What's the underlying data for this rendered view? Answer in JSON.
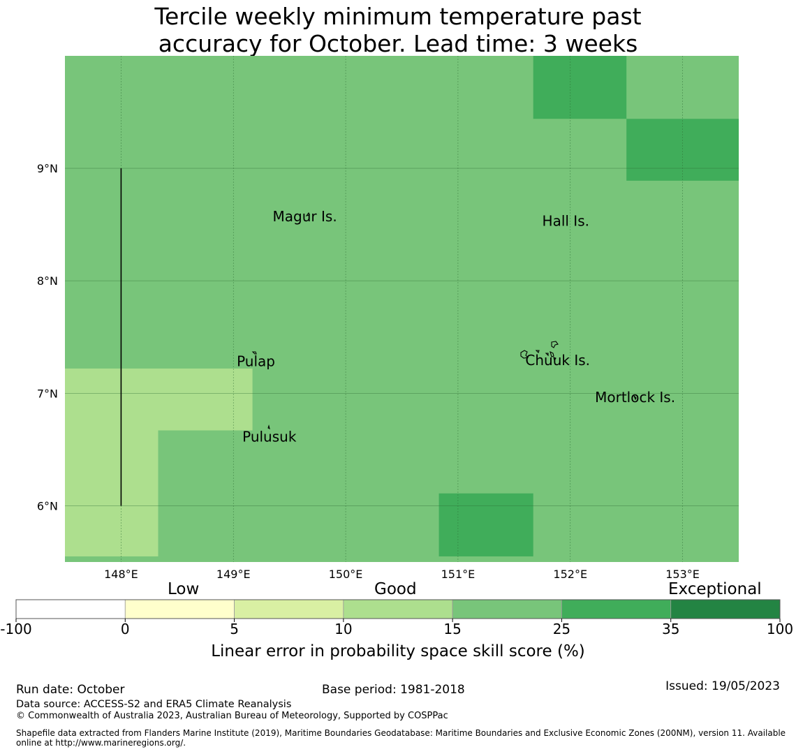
{
  "title_line1": "Tercile weekly minimum temperature past",
  "title_line2": "accuracy for October. Lead time: 3 weeks",
  "map": {
    "lon_range": [
      147.5,
      153.5
    ],
    "lat_range": [
      5.5,
      10.0
    ],
    "lon_ticks": [
      148,
      149,
      150,
      151,
      152,
      153
    ],
    "lon_tick_labels": [
      "148°E",
      "149°E",
      "150°E",
      "151°E",
      "152°E",
      "153°E"
    ],
    "lat_ticks": [
      9,
      8,
      7,
      6
    ],
    "lat_tick_labels": [
      "9°N",
      "8°N",
      "7°N",
      "6°N"
    ],
    "background_color": "#78c57a",
    "grid": true,
    "skill_regions": [
      {
        "lon": [
          147.5,
          149.17
        ],
        "lat": [
          6.67,
          7.22
        ],
        "color": "#addf8e"
      },
      {
        "lon": [
          147.5,
          148.33
        ],
        "lat": [
          5.55,
          6.67
        ],
        "color": "#addf8e"
      },
      {
        "lon": [
          151.67,
          152.5
        ],
        "lat": [
          9.44,
          10.0
        ],
        "color": "#40ad5a"
      },
      {
        "lon": [
          152.5,
          153.5
        ],
        "lat": [
          8.89,
          9.44
        ],
        "color": "#40ad5a"
      },
      {
        "lon": [
          150.83,
          151.67
        ],
        "lat": [
          5.55,
          6.11
        ],
        "color": "#40ad5a"
      }
    ],
    "boundary_line": {
      "lon": 148.0,
      "lat": [
        6.0,
        9.0
      ]
    },
    "place_labels": [
      {
        "name": "Magur Is.",
        "lon": 149.35,
        "lat": 8.53
      },
      {
        "name": "Hall Is.",
        "lon": 151.75,
        "lat": 8.49
      },
      {
        "name": "Pulap",
        "lon": 149.03,
        "lat": 7.24
      },
      {
        "name": "Chuuk Is.",
        "lon": 151.6,
        "lat": 7.25
      },
      {
        "name": "Mortlock Is.",
        "lon": 152.22,
        "lat": 6.92
      },
      {
        "name": "Pulusuk",
        "lon": 149.08,
        "lat": 6.57
      }
    ]
  },
  "colorbar": {
    "categories": [
      "Low",
      "Good",
      "Exceptional"
    ],
    "bins": [
      {
        "from": -100,
        "to": 0,
        "color": "#ffffff"
      },
      {
        "from": 0,
        "to": 5,
        "color": "#ffffcc"
      },
      {
        "from": 5,
        "to": 10,
        "color": "#d9f0a3"
      },
      {
        "from": 10,
        "to": 15,
        "color": "#addf8e"
      },
      {
        "from": 15,
        "to": 25,
        "color": "#78c57a"
      },
      {
        "from": 25,
        "to": 35,
        "color": "#40ad5a"
      },
      {
        "from": 35,
        "to": 100,
        "color": "#238443"
      }
    ],
    "tick_labels": [
      "-100",
      "0",
      "5",
      "10",
      "15",
      "25",
      "35",
      "100"
    ],
    "label": "Linear error in probability space skill score (%)"
  },
  "footer": {
    "run_date": "Run date: October",
    "base_period": "Base period: 1981-2018",
    "issued": "Issued: 19/05/2023",
    "data_source": "Data source: ACCESS-S2 and ERA5 Climate Reanalysis",
    "copyright": "© Commonwealth of Australia 2023, Australian Bureau of Meteorology, Supported by COSPPac",
    "shapefile_line1": "Shapefile data extracted from Flanders Marine Institute (2019), Maritime Boundaries Geodatabase: Maritime Boundaries and Exclusive Economic Zones (200NM), version 11. Available",
    "shapefile_line2": "online at http://www.marineregions.org/."
  }
}
